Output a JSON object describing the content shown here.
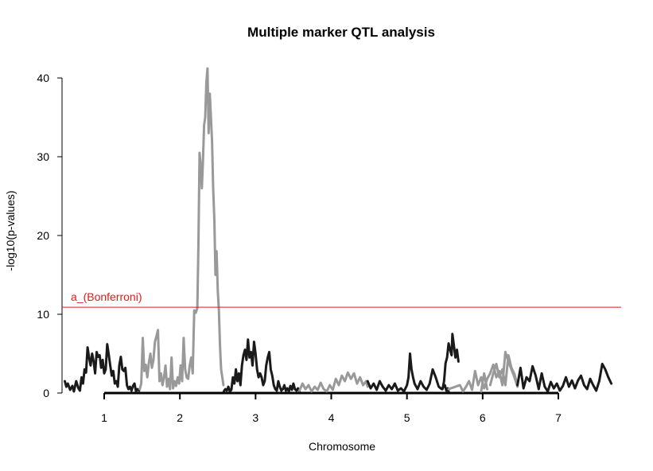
{
  "chart_data": {
    "type": "line",
    "title": "Multiple marker QTL analysis",
    "xlabel": "Chromosome",
    "ylabel": "-log10(p-values)",
    "ylim": [
      0,
      41.5
    ],
    "yticks": [
      "0",
      "10",
      "20",
      "30",
      "40"
    ],
    "yticks_values": [
      0,
      10,
      20,
      30,
      40
    ],
    "xlim": [
      0.45,
      7.8
    ],
    "chromosome_ticks": [
      {
        "label": "1",
        "x": 1.0
      },
      {
        "label": "2",
        "x": 2.0
      },
      {
        "label": "3",
        "x": 3.0
      },
      {
        "label": "4",
        "x": 4.0
      },
      {
        "label": "5",
        "x": 5.0
      },
      {
        "label": "6",
        "x": 6.0
      },
      {
        "label": "7",
        "x": 7.0
      }
    ],
    "chromosome_spans": [
      {
        "chromosome": "1",
        "start": 0.48,
        "end": 1.47,
        "color": "#1a1a1a"
      },
      {
        "chromosome": "2",
        "start": 1.47,
        "end": 2.58,
        "color": "#999999"
      },
      {
        "chromosome": "3",
        "start": 2.58,
        "end": 3.58,
        "color": "#1a1a1a"
      },
      {
        "chromosome": "4",
        "start": 3.58,
        "end": 4.48,
        "color": "#999999"
      },
      {
        "chromosome": "5",
        "start": 4.48,
        "end": 5.55,
        "color": "#1a1a1a"
      },
      {
        "chromosome": "6",
        "start": 5.55,
        "end": 6.46,
        "color": "#999999"
      },
      {
        "chromosome": "7",
        "start": 6.46,
        "end": 7.72,
        "color": "#1a1a1a"
      }
    ],
    "threshold": {
      "label": "a_(Bonferroni)",
      "value": 10.9,
      "color": "#e31a1c"
    },
    "series": [
      {
        "chromosome": "1",
        "color": "#1a1a1a",
        "x": [
          0.48,
          0.5,
          0.52,
          0.55,
          0.58,
          0.6,
          0.63,
          0.66,
          0.68,
          0.7,
          0.72,
          0.74,
          0.76,
          0.78,
          0.8,
          0.82,
          0.84,
          0.86,
          0.88,
          0.9,
          0.92,
          0.94,
          0.96,
          0.98,
          1.0,
          1.02,
          1.04,
          1.06,
          1.08,
          1.1,
          1.12,
          1.14,
          1.16,
          1.18,
          1.2,
          1.22,
          1.24,
          1.26,
          1.28,
          1.3,
          1.32,
          1.34,
          1.36,
          1.38,
          1.4,
          1.42,
          1.44,
          1.46
        ],
        "y": [
          1.5,
          0.8,
          1.2,
          0.4,
          0.9,
          0.2,
          1.5,
          0.6,
          0.3,
          2.0,
          1.2,
          3.0,
          2.6,
          5.8,
          4.5,
          3.5,
          5.0,
          4.0,
          2.5,
          5.2,
          4.6,
          4.8,
          3.2,
          4.2,
          2.5,
          3.0,
          6.2,
          4.9,
          3.5,
          2.2,
          2.8,
          1.2,
          1.5,
          0.8,
          3.5,
          4.6,
          3.0,
          2.8,
          3.2,
          1.0,
          0.5,
          0.8,
          0.3,
          0.9,
          1.2,
          0.2,
          0.5,
          0.3
        ]
      },
      {
        "chromosome": "2",
        "color": "#999999",
        "x": [
          1.47,
          1.49,
          1.51,
          1.53,
          1.55,
          1.57,
          1.59,
          1.61,
          1.63,
          1.65,
          1.67,
          1.69,
          1.71,
          1.73,
          1.75,
          1.77,
          1.79,
          1.81,
          1.83,
          1.85,
          1.87,
          1.89,
          1.91,
          1.93,
          1.95,
          1.97,
          1.99,
          2.01,
          2.03,
          2.05,
          2.07,
          2.09,
          2.11,
          2.13,
          2.15,
          2.17,
          2.19,
          2.21,
          2.23,
          2.245,
          2.26,
          2.275,
          2.29,
          2.305,
          2.32,
          2.335,
          2.35,
          2.365,
          2.38,
          2.395,
          2.41,
          2.425,
          2.44,
          2.455,
          2.47,
          2.485,
          2.5,
          2.515,
          2.53,
          2.545,
          2.56,
          2.575
        ],
        "y": [
          0.5,
          1.2,
          7.0,
          2.8,
          3.6,
          2.0,
          3.8,
          5.0,
          3.2,
          4.2,
          6.5,
          7.2,
          8.0,
          1.5,
          2.5,
          1.0,
          2.0,
          3.5,
          0.8,
          1.8,
          0.5,
          4.5,
          0.6,
          1.5,
          0.9,
          2.0,
          1.2,
          3.5,
          1.5,
          7.0,
          3.0,
          2.0,
          1.8,
          3.5,
          4.5,
          2.5,
          10.5,
          10.2,
          10.8,
          19.0,
          30.5,
          29.0,
          26.0,
          29.5,
          34.0,
          35.0,
          39.5,
          41.2,
          33.0,
          38.0,
          35.0,
          32.0,
          26.0,
          22.0,
          15.0,
          18.0,
          13.0,
          10.5,
          6.0,
          3.0,
          2.0,
          1.0
        ]
      },
      {
        "chromosome": "3",
        "color": "#1a1a1a",
        "x": [
          2.58,
          2.6,
          2.62,
          2.64,
          2.66,
          2.68,
          2.7,
          2.72,
          2.74,
          2.76,
          2.78,
          2.8,
          2.82,
          2.84,
          2.86,
          2.88,
          2.9,
          2.92,
          2.94,
          2.96,
          2.98,
          3.0,
          3.02,
          3.04,
          3.06,
          3.08,
          3.1,
          3.12,
          3.14,
          3.16,
          3.18,
          3.2,
          3.22,
          3.24,
          3.26,
          3.28,
          3.3,
          3.32,
          3.34,
          3.36,
          3.38,
          3.4,
          3.42,
          3.44,
          3.46,
          3.48,
          3.5,
          3.52,
          3.54,
          3.56,
          3.58
        ],
        "y": [
          0.2,
          0.5,
          0.3,
          0.8,
          0.2,
          0.4,
          2.0,
          1.2,
          3.0,
          1.5,
          2.5,
          1.0,
          3.5,
          4.8,
          5.5,
          4.2,
          6.8,
          4.5,
          5.2,
          3.5,
          6.5,
          5.0,
          3.0,
          2.0,
          2.5,
          2.0,
          1.0,
          1.5,
          3.5,
          4.5,
          5.2,
          3.0,
          2.2,
          1.0,
          0.5,
          0.3,
          1.5,
          0.8,
          0.3,
          0.5,
          1.0,
          0.3,
          0.6,
          0.2,
          0.9,
          0.4,
          1.2,
          0.5,
          0.3,
          0.6,
          0.2
        ]
      },
      {
        "chromosome": "4",
        "color": "#999999",
        "x": [
          3.58,
          3.62,
          3.66,
          3.7,
          3.74,
          3.78,
          3.82,
          3.86,
          3.9,
          3.94,
          3.98,
          4.02,
          4.06,
          4.1,
          4.14,
          4.18,
          4.22,
          4.26,
          4.3,
          4.34,
          4.38,
          4.42,
          4.46,
          4.48
        ],
        "y": [
          0.3,
          1.2,
          0.5,
          1.0,
          0.2,
          0.8,
          0.4,
          1.3,
          0.5,
          0.2,
          1.0,
          0.4,
          1.8,
          1.0,
          2.2,
          1.5,
          2.6,
          1.8,
          2.5,
          1.2,
          2.0,
          1.0,
          1.5,
          0.8
        ]
      },
      {
        "chromosome": "5",
        "color": "#1a1a1a",
        "x": [
          4.48,
          4.52,
          4.56,
          4.6,
          4.64,
          4.68,
          4.72,
          4.76,
          4.8,
          4.84,
          4.88,
          4.92,
          4.96,
          5.0,
          5.02,
          5.04,
          5.06,
          5.08,
          5.1,
          5.14,
          5.18,
          5.22,
          5.26,
          5.3,
          5.34,
          5.38,
          5.42,
          5.46,
          5.5,
          5.52,
          5.54,
          5.55
        ],
        "y": [
          1.5,
          0.6,
          1.2,
          0.4,
          1.5,
          0.8,
          0.3,
          1.0,
          0.5,
          1.2,
          0.3,
          0.6,
          0.2,
          1.0,
          2.0,
          5.0,
          3.0,
          2.0,
          1.2,
          0.5,
          1.5,
          0.8,
          0.4,
          1.2,
          3.0,
          2.0,
          0.8,
          0.5,
          1.0,
          0.3,
          0.6,
          0.2
        ]
      },
      {
        "chromosome": "5b",
        "color": "#1a1a1a",
        "x": [
          5.47,
          5.49,
          5.51,
          5.53,
          5.55,
          5.57,
          5.59,
          5.6,
          5.62,
          5.64,
          5.66,
          5.68
        ],
        "y": [
          0.5,
          1.5,
          3.8,
          4.5,
          6.3,
          5.5,
          4.8,
          7.5,
          6.0,
          4.5,
          5.5,
          4.0
        ]
      },
      {
        "chromosome": "6",
        "color": "#999999",
        "x": [
          5.55,
          5.7,
          5.74,
          5.78,
          5.82,
          5.86,
          5.9,
          5.94,
          5.98,
          6.02,
          6.06,
          6.1,
          6.14,
          6.18,
          6.22,
          6.26,
          6.3,
          6.34,
          6.38,
          6.42,
          6.46
        ],
        "y": [
          0.5,
          1.0,
          0.2,
          0.8,
          1.5,
          0.4,
          2.8,
          1.0,
          2.0,
          0.6,
          1.8,
          2.5,
          3.6,
          2.0,
          2.8,
          1.0,
          5.2,
          4.0,
          3.0,
          2.0,
          0.8
        ]
      },
      {
        "chromosome": "6b",
        "color": "#999999",
        "x": [
          5.98,
          6.02,
          6.06
        ],
        "y": [
          0.2,
          2.5,
          0.5
        ]
      },
      {
        "chromosome": "6c",
        "color": "#999999",
        "x": [
          6.1,
          6.14,
          6.18,
          6.22,
          6.26,
          6.3,
          6.34,
          6.38,
          6.42,
          6.46
        ],
        "y": [
          1.0,
          2.5,
          3.7,
          2.0,
          3.0,
          1.0,
          4.8,
          3.2,
          2.4,
          1.0
        ]
      },
      {
        "chromosome": "7",
        "color": "#1a1a1a",
        "x": [
          6.46,
          6.5,
          6.54,
          6.58,
          6.62,
          6.66,
          6.7,
          6.74,
          6.78,
          6.82,
          6.86,
          6.9,
          6.94,
          6.98,
          7.02,
          7.06,
          7.1,
          7.14,
          7.18,
          7.22,
          7.26,
          7.3,
          7.34,
          7.38,
          7.42,
          7.46,
          7.5,
          7.54,
          7.58,
          7.62,
          7.66,
          7.7
        ],
        "y": [
          1.0,
          3.2,
          0.6,
          2.0,
          1.5,
          3.4,
          2.2,
          0.5,
          2.5,
          0.8,
          0.2,
          1.4,
          0.6,
          1.2,
          0.3,
          0.9,
          2.0,
          0.8,
          1.6,
          0.6,
          1.6,
          2.2,
          1.0,
          0.5,
          1.8,
          1.0,
          0.3,
          1.5,
          3.7,
          3.0,
          2.0,
          1.2
        ]
      }
    ]
  }
}
